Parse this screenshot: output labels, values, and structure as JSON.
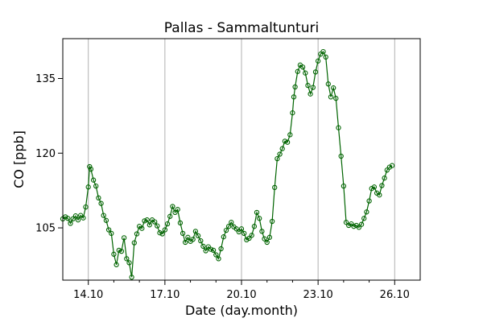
{
  "chart_data": {
    "type": "line",
    "title": "Pallas - Sammaltunturi",
    "xlabel": "Date (day.month)",
    "ylabel": "CO [ppb]",
    "x_start": "13.10",
    "x_end": "27.10",
    "xlim_days": [
      13.0,
      27.0
    ],
    "ylim": [
      94.5,
      143
    ],
    "x_ticks": [
      {
        "day": 14,
        "label": "14.10"
      },
      {
        "day": 17,
        "label": "17.10"
      },
      {
        "day": 20,
        "label": "20.10"
      },
      {
        "day": 23,
        "label": "23.10"
      },
      {
        "day": 26,
        "label": "26.10"
      }
    ],
    "x_minor_ticks": [
      15,
      16,
      18,
      19,
      21,
      22,
      24,
      25
    ],
    "y_ticks": [
      {
        "value": 105,
        "label": "105"
      },
      {
        "value": 120,
        "label": "120"
      },
      {
        "value": 135,
        "label": "135"
      }
    ],
    "grid": "x-major",
    "marker": "hollow-circle",
    "colors": {
      "line": "#006400",
      "grid": "#b0b0b0"
    },
    "series": [
      {
        "name": "",
        "points": [
          [
            13.0,
            106.8
          ],
          [
            13.1,
            107.2
          ],
          [
            13.2,
            106.9
          ],
          [
            13.3,
            105.9
          ],
          [
            13.4,
            106.8
          ],
          [
            13.5,
            107.4
          ],
          [
            13.6,
            106.6
          ],
          [
            13.7,
            107.5
          ],
          [
            13.8,
            107.0
          ],
          [
            13.9,
            109.2
          ],
          [
            14.0,
            113.2
          ],
          [
            14.05,
            117.3
          ],
          [
            14.1,
            116.8
          ],
          [
            14.2,
            114.6
          ],
          [
            14.3,
            113.4
          ],
          [
            14.4,
            111.0
          ],
          [
            14.5,
            109.9
          ],
          [
            14.6,
            107.5
          ],
          [
            14.7,
            106.5
          ],
          [
            14.8,
            104.6
          ],
          [
            14.9,
            103.9
          ],
          [
            15.0,
            99.7
          ],
          [
            15.1,
            97.6
          ],
          [
            15.2,
            100.5
          ],
          [
            15.3,
            100.3
          ],
          [
            15.4,
            103.0
          ],
          [
            15.5,
            98.8
          ],
          [
            15.6,
            98.0
          ],
          [
            15.7,
            95.1
          ],
          [
            15.8,
            102.0
          ],
          [
            15.9,
            103.8
          ],
          [
            16.0,
            105.3
          ],
          [
            16.1,
            104.9
          ],
          [
            16.2,
            106.4
          ],
          [
            16.3,
            106.6
          ],
          [
            16.4,
            105.6
          ],
          [
            16.5,
            106.6
          ],
          [
            16.6,
            106.2
          ],
          [
            16.7,
            105.4
          ],
          [
            16.8,
            104.0
          ],
          [
            16.9,
            103.8
          ],
          [
            17.0,
            104.6
          ],
          [
            17.1,
            105.8
          ],
          [
            17.2,
            107.3
          ],
          [
            17.3,
            109.3
          ],
          [
            17.4,
            108.1
          ],
          [
            17.5,
            108.7
          ],
          [
            17.6,
            106.0
          ],
          [
            17.7,
            103.9
          ],
          [
            17.8,
            102.1
          ],
          [
            17.9,
            103.1
          ],
          [
            18.0,
            102.3
          ],
          [
            18.1,
            102.7
          ],
          [
            18.2,
            104.3
          ],
          [
            18.3,
            103.4
          ],
          [
            18.4,
            102.4
          ],
          [
            18.5,
            101.3
          ],
          [
            18.6,
            100.4
          ],
          [
            18.7,
            101.2
          ],
          [
            18.8,
            100.7
          ],
          [
            18.9,
            100.5
          ],
          [
            19.0,
            99.6
          ],
          [
            19.1,
            98.8
          ],
          [
            19.2,
            100.8
          ],
          [
            19.3,
            103.2
          ],
          [
            19.4,
            104.5
          ],
          [
            19.5,
            105.3
          ],
          [
            19.6,
            106.1
          ],
          [
            19.7,
            105.2
          ],
          [
            19.8,
            104.8
          ],
          [
            19.9,
            104.2
          ],
          [
            20.0,
            104.8
          ],
          [
            20.1,
            103.9
          ],
          [
            20.2,
            102.6
          ],
          [
            20.3,
            102.9
          ],
          [
            20.4,
            103.5
          ],
          [
            20.5,
            105.3
          ],
          [
            20.6,
            108.1
          ],
          [
            20.7,
            106.9
          ],
          [
            20.8,
            104.3
          ],
          [
            20.9,
            102.8
          ],
          [
            21.0,
            102.1
          ],
          [
            21.1,
            103.1
          ],
          [
            21.2,
            106.3
          ],
          [
            21.3,
            113.1
          ],
          [
            21.4,
            118.9
          ],
          [
            21.5,
            119.8
          ],
          [
            21.6,
            120.9
          ],
          [
            21.7,
            122.4
          ],
          [
            21.8,
            122.2
          ],
          [
            21.9,
            123.7
          ],
          [
            22.0,
            128.1
          ],
          [
            22.05,
            131.3
          ],
          [
            22.1,
            133.3
          ],
          [
            22.2,
            136.4
          ],
          [
            22.3,
            137.7
          ],
          [
            22.4,
            137.3
          ],
          [
            22.5,
            136.1
          ],
          [
            22.6,
            133.6
          ],
          [
            22.7,
            131.9
          ],
          [
            22.8,
            133.2
          ],
          [
            22.9,
            136.3
          ],
          [
            23.0,
            138.5
          ],
          [
            23.1,
            139.9
          ],
          [
            23.2,
            140.4
          ],
          [
            23.3,
            139.3
          ],
          [
            23.4,
            133.9
          ],
          [
            23.5,
            131.3
          ],
          [
            23.6,
            133.1
          ],
          [
            23.7,
            131.0
          ],
          [
            23.8,
            125.1
          ],
          [
            23.9,
            119.4
          ],
          [
            24.0,
            113.4
          ],
          [
            24.1,
            106.1
          ],
          [
            24.2,
            105.5
          ],
          [
            24.3,
            105.8
          ],
          [
            24.4,
            105.3
          ],
          [
            24.5,
            105.5
          ],
          [
            24.6,
            105.1
          ],
          [
            24.7,
            105.7
          ],
          [
            24.8,
            106.9
          ],
          [
            24.9,
            108.2
          ],
          [
            25.0,
            110.4
          ],
          [
            25.1,
            112.9
          ],
          [
            25.2,
            113.2
          ],
          [
            25.3,
            112.0
          ],
          [
            25.4,
            111.6
          ],
          [
            25.5,
            113.5
          ],
          [
            25.6,
            115.0
          ],
          [
            25.7,
            116.6
          ],
          [
            25.8,
            117.2
          ],
          [
            25.9,
            117.5
          ]
        ]
      }
    ]
  }
}
